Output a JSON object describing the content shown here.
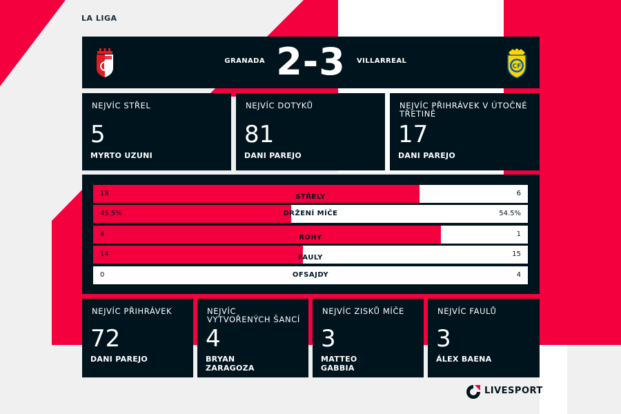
{
  "league": "LA LIGA",
  "match": {
    "home_team": "GRANADA",
    "away_team": "VILLARREAL",
    "score": "2-3",
    "home_crest": "granada-crest-icon",
    "away_crest": "villarreal-crest-icon"
  },
  "top_cards": [
    {
      "label": "NEJVÍC STŘEL",
      "value": "5",
      "player": "MYRTO UZUNI"
    },
    {
      "label": "NEJVÍC DOTYKŮ",
      "value": "81",
      "player": "DANI PAREJO"
    },
    {
      "label": "NEJVÍC PŘIHRÁVEK V ÚTOČNÉ TŘETINĚ",
      "value": "17",
      "player": "DANI PAREJO"
    }
  ],
  "stats": [
    {
      "name": "STŘELY",
      "home": "18",
      "away": "6",
      "home_fraction": 0.75
    },
    {
      "name": "DRŽENÍ MÍČE",
      "home": "45.5%",
      "away": "54.5%",
      "home_fraction": 0.455
    },
    {
      "name": "ROHY",
      "home": "4",
      "away": "1",
      "home_fraction": 0.8
    },
    {
      "name": "FAULY",
      "home": "14",
      "away": "15",
      "home_fraction": 0.483
    },
    {
      "name": "OFSAJDY",
      "home": "0",
      "away": "4",
      "home_fraction": 0
    }
  ],
  "bottom_cards": [
    {
      "label": "NEJVÍC PŘIHRÁVEK",
      "value": "72",
      "player": "DANI PAREJO"
    },
    {
      "label": "NEJVÍC VYTVOŘENÝCH ŠANCÍ",
      "value": "4",
      "player": "BRYAN ZARAGOZA"
    },
    {
      "label": "NEJVÍC ZISKŮ MÍČE",
      "value": "3",
      "player": "MATTEO GABBIA"
    },
    {
      "label": "NEJVÍC FAULŮ",
      "value": "3",
      "player": "ÁLEX BAENA"
    }
  ],
  "brand": {
    "name": "LIVESPORT",
    "logo": "livesport-logo-icon"
  },
  "colors": {
    "accent": "#f4003f",
    "panel": "#00141e",
    "background": "#f0f0f1"
  }
}
